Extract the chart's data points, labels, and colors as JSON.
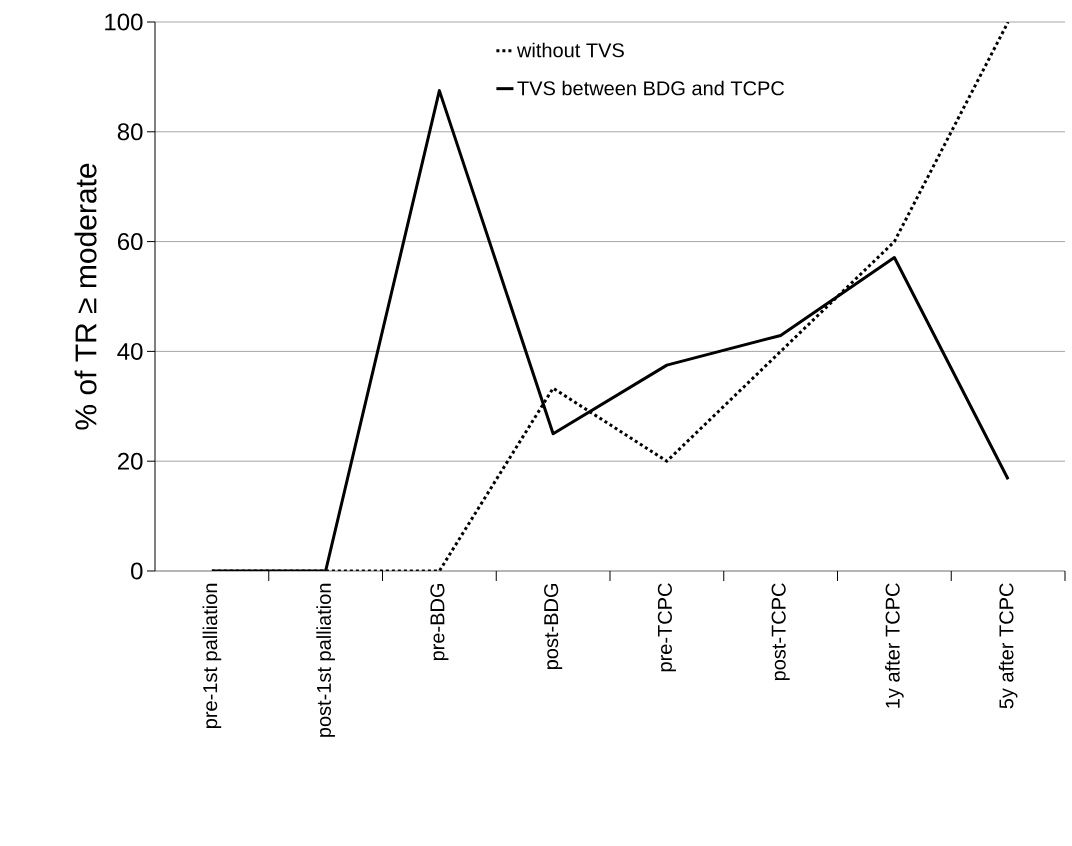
{
  "chart_data": {
    "type": "line",
    "ylabel": "% of TR ≥ moderate",
    "categories": [
      "pre-1st palliation",
      "post-1st palliation",
      "pre-BDG",
      "post-BDG",
      "pre-TCPC",
      "post-TCPC",
      "1y after TCPC",
      "5y after TCPC"
    ],
    "series": [
      {
        "name": "without TVS",
        "color": "#000000",
        "line_style": "dotted",
        "values": [
          0,
          0,
          0,
          33.3,
          20,
          40,
          60,
          100
        ]
      },
      {
        "name": "TVS between BDG and TCPC",
        "color": "#000000",
        "line_style": "solid",
        "values": [
          0,
          0,
          87.5,
          25,
          37.5,
          42.9,
          57.1,
          16.7
        ]
      }
    ],
    "ylim": [
      0,
      100
    ],
    "yticks": [
      0,
      20,
      40,
      60,
      80,
      100
    ],
    "grid": "y",
    "legend": "top"
  }
}
